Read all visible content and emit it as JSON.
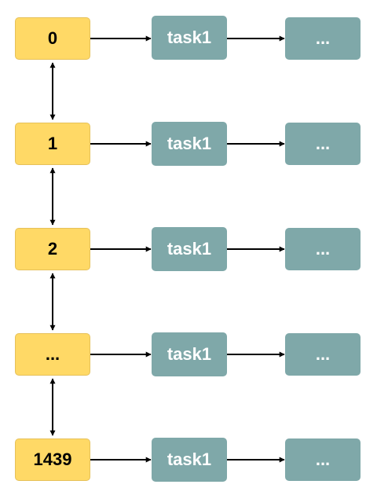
{
  "colors": {
    "slot_fill": "#ffd966",
    "task_fill": "#7fa8a9",
    "task_text": "#ffffff",
    "arrow": "#000000"
  },
  "rows": [
    {
      "slot": "0",
      "task": "task1",
      "more": "..."
    },
    {
      "slot": "1",
      "task": "task1",
      "more": "..."
    },
    {
      "slot": "2",
      "task": "task1",
      "more": "..."
    },
    {
      "slot": "...",
      "task": "task1",
      "more": "..."
    },
    {
      "slot": "1439",
      "task": "task1",
      "more": "..."
    }
  ]
}
